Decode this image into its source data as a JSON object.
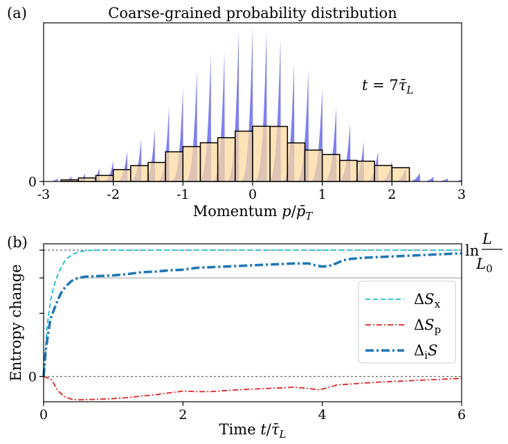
{
  "colors": {
    "axis": "#000000",
    "purple_fill": "#8080ee",
    "orange_fill": "#fcd9a0",
    "overlap_fill": "#c69a92",
    "bar_edge": "#000000",
    "dSx": "#17becf",
    "dSp": "#e02020",
    "diS": "#1f77b4",
    "ref_line": "#666666",
    "plateau": "#c8c8c8"
  },
  "chart_data": [
    {
      "panel": "(a)",
      "type": "bar",
      "title": "Coarse-grained probability distribution",
      "xlabel": "Momentum p/p̄_T",
      "xlabel_parts": {
        "main": "Momentum ",
        "var": "p",
        "sep": "/",
        "bar": "p̄",
        "sub": "T"
      },
      "ylabel": "",
      "annotation": {
        "var": "t",
        "eq": " = 7",
        "bar": "τ̄",
        "sub": "L"
      },
      "xlim": [
        -3,
        3
      ],
      "ylim": [
        0,
        1.0
      ],
      "xticks": [
        -3,
        -2,
        -1,
        0,
        1,
        2,
        3
      ],
      "xtick_labels": [
        "-3",
        "-2",
        "-1",
        "0",
        "1",
        "2",
        "3"
      ],
      "yticks": [
        0
      ],
      "ytick_labels": [
        "0"
      ],
      "coarse_bins": {
        "edges": [
          -2.75,
          -2.5,
          -2.25,
          -2.0,
          -1.75,
          -1.5,
          -1.25,
          -1.0,
          -0.75,
          -0.5,
          -0.25,
          0.0,
          0.25,
          0.5,
          0.75,
          1.0,
          1.25,
          1.5,
          1.75,
          2.0,
          2.25,
          2.5,
          2.75
        ],
        "heights": [
          0.01,
          0.022,
          0.038,
          0.075,
          0.1,
          0.12,
          0.187,
          0.22,
          0.244,
          0.276,
          0.317,
          0.348,
          0.347,
          0.243,
          0.198,
          0.17,
          0.133,
          0.128,
          0.101,
          0.087,
          0.0,
          0.0
        ]
      },
      "fine_distribution": {
        "spacing": 0.2,
        "peak": 0.975,
        "sigma": 1.0
      }
    },
    {
      "panel": "(b)",
      "type": "line",
      "xlabel": "Time t/τ̄_L",
      "xlabel_parts": {
        "main": "Time ",
        "var": "t",
        "sep": "/",
        "bar": "τ̄",
        "sub": "L"
      },
      "ylabel": "Entropy change",
      "xlim": [
        0,
        6
      ],
      "ylim": [
        -0.2,
        1.05
      ],
      "xticks": [
        0,
        2,
        4,
        6
      ],
      "xtick_labels": [
        "0",
        "2",
        "4",
        "6"
      ],
      "yticks": [
        0
      ],
      "ytick_labels": [
        "0"
      ],
      "right_label": {
        "prefix": "ln",
        "num": "L",
        "den": "L",
        "den_sub": "0"
      },
      "legend": {
        "placement": "center-right"
      },
      "series": [
        {
          "name": "ΔSₓ",
          "label_parts": {
            "delta": "Δ",
            "var": "S",
            "sub": "x"
          },
          "style": "dashed",
          "x": [
            0,
            0.05,
            0.1,
            0.15,
            0.2,
            0.25,
            0.3,
            0.35,
            0.4,
            0.45,
            0.5,
            0.6,
            0.7,
            1.0,
            2.0,
            3.0,
            4.0,
            5.0,
            6.0
          ],
          "y": [
            0,
            0.4,
            0.6,
            0.72,
            0.8,
            0.86,
            0.91,
            0.94,
            0.96,
            0.975,
            0.985,
            0.995,
            1.0,
            1.0,
            1.0,
            1.0,
            1.0,
            1.0,
            1.0
          ]
        },
        {
          "name": "ΔSₚ",
          "label_parts": {
            "delta": "Δ",
            "var": "S",
            "sub": "p"
          },
          "style": "dashdot",
          "x": [
            0,
            0.1,
            0.15,
            0.2,
            0.3,
            0.4,
            0.5,
            0.6,
            0.8,
            1.0,
            1.2,
            1.4,
            1.6,
            1.8,
            1.95,
            2.0,
            2.2,
            2.4,
            2.6,
            2.8,
            3.0,
            3.2,
            3.4,
            3.6,
            3.8,
            3.95,
            4.0,
            4.1,
            4.2,
            4.4,
            4.6,
            4.8,
            5.0,
            5.2,
            5.4,
            5.6,
            5.8,
            6.0
          ],
          "y": [
            0,
            -0.02,
            -0.06,
            -0.11,
            -0.16,
            -0.18,
            -0.185,
            -0.183,
            -0.18,
            -0.175,
            -0.168,
            -0.155,
            -0.145,
            -0.13,
            -0.12,
            -0.115,
            -0.12,
            -0.12,
            -0.112,
            -0.105,
            -0.1,
            -0.095,
            -0.09,
            -0.085,
            -0.095,
            -0.105,
            -0.1,
            -0.085,
            -0.068,
            -0.06,
            -0.052,
            -0.045,
            -0.04,
            -0.035,
            -0.03,
            -0.025,
            -0.02,
            -0.015
          ]
        },
        {
          "name": "ΔᵢS",
          "label_parts": {
            "delta": "Δ",
            "sub": "i",
            "var": "S"
          },
          "style": "dashdot-thick",
          "x": [
            0,
            0.03,
            0.06,
            0.1,
            0.15,
            0.2,
            0.25,
            0.3,
            0.35,
            0.4,
            0.45,
            0.5,
            0.6,
            0.8,
            1.0,
            1.2,
            1.4,
            1.6,
            1.8,
            2.0,
            2.2,
            2.4,
            2.6,
            2.8,
            3.0,
            3.2,
            3.4,
            3.6,
            3.8,
            3.9,
            4.0,
            4.1,
            4.2,
            4.3,
            4.4,
            4.6,
            4.8,
            5.0,
            5.2,
            5.4,
            5.6,
            5.8,
            6.0
          ],
          "y": [
            0,
            0.2,
            0.32,
            0.46,
            0.53,
            0.6,
            0.66,
            0.7,
            0.73,
            0.755,
            0.77,
            0.78,
            0.79,
            0.795,
            0.8,
            0.81,
            0.825,
            0.83,
            0.84,
            0.845,
            0.86,
            0.865,
            0.87,
            0.875,
            0.88,
            0.885,
            0.89,
            0.895,
            0.895,
            0.88,
            0.87,
            0.875,
            0.895,
            0.92,
            0.93,
            0.94,
            0.945,
            0.95,
            0.955,
            0.96,
            0.965,
            0.97,
            0.975
          ]
        }
      ],
      "reference_lines": [
        {
          "y": 1.0,
          "label": "ln L/L0"
        },
        {
          "y": 0.0,
          "label": "0"
        }
      ],
      "plateau_line": {
        "y": 0.78,
        "x_start": 0.45
      }
    }
  ]
}
